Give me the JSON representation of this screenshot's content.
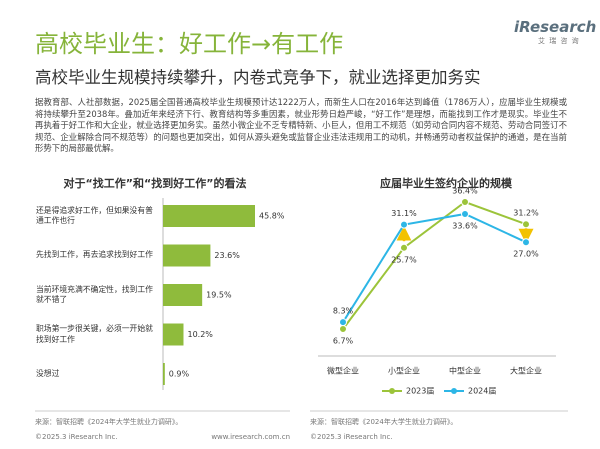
{
  "header": {
    "title": "高校毕业生：好工作→有工作",
    "subtitle": "高校毕业生规模持续攀升，内卷式竞争下，就业选择更加务实",
    "logo": "iResearch",
    "logo_sub": "艾 瑞 咨 询"
  },
  "paragraph": "据教育部、人社部数据，2025届全国普通高校毕业生规模预计达1222万人，而新生人口在2016年达到峰值（1786万人），应届毕业生规模或将持续攀升至2038年。叠加近年来经济下行、教育结构等多重因素，就业形势日趋严峻，“好工作”是理想，而能找到工作才是现实。毕业生不再执着于好工作和大企业，就业选择更加务实。虽然小微企业不乏专精特新、小巨人，但用工不规范（如劳动合同内容不规范、劳动合同签订不规范、企业解除合同不规范等）的问题也更加突出，如何从源头避免或监督企业违法违规用工的动机，并畅通劳动者权益保护的通道，是在当前形势下的局部最优解。",
  "chart_data": [
    {
      "type": "bar",
      "title": "对于“找工作”和“找到好工作”的看法",
      "categories": [
        "还是得追求好工作，但如果没有普通工作也行",
        "先找到工作，再去追求找到好工作",
        "当前环境充满不确定性，找到工作就不错了",
        "职场第一步很关键，必须一开始就找到好工作",
        "没想过"
      ],
      "values": [
        45.8,
        23.6,
        19.5,
        10.2,
        0.9
      ],
      "value_labels": [
        "45.8%",
        "23.6%",
        "19.5%",
        "10.2%",
        "0.9%"
      ],
      "color": "#8fbb3c",
      "source": "来源：智联招聘《2024年大学生就业力调研》。"
    },
    {
      "type": "line",
      "title": "应届毕业生签约企业的规模",
      "categories": [
        "微型企业",
        "小型企业",
        "中型企业",
        "大型企业"
      ],
      "series": [
        {
          "name": "2023届",
          "color": "#9cc43a",
          "values": [
            6.7,
            25.7,
            36.4,
            31.2
          ],
          "value_labels": [
            "6.7%",
            "25.7%",
            "36.4%",
            "31.2%"
          ]
        },
        {
          "name": "2024届",
          "color": "#2db6e6",
          "values": [
            8.3,
            31.1,
            33.6,
            27.0
          ],
          "value_labels": [
            "8.3%",
            "31.1%",
            "33.6%",
            "27.0%"
          ]
        }
      ],
      "source": "来源：智联招聘《2024年大学生就业力调研》。"
    }
  ],
  "footer": {
    "copyright_left": "©2025.3 iResearch Inc.",
    "url": "www.iresearch.com.cn",
    "copyright_right": "©2025.3 iResearch Inc."
  }
}
